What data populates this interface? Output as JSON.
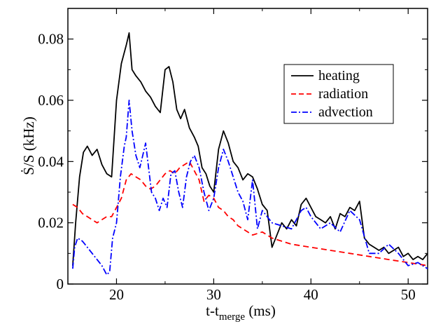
{
  "chart_data": {
    "type": "line",
    "title": "",
    "xlabel": {
      "main": "t-t",
      "sub": "merge",
      "unit": " (ms)"
    },
    "ylabel": {
      "dot_symbol": "Ṡ",
      "rest": "/S (kHz)"
    },
    "xlim": [
      15,
      52
    ],
    "ylim": [
      0,
      0.09
    ],
    "x_ticks": [
      20,
      30,
      40,
      50
    ],
    "x_tick_labels": [
      "20",
      "30",
      "40",
      "50"
    ],
    "y_ticks": [
      0,
      0.02,
      0.04,
      0.06,
      0.08
    ],
    "y_tick_labels": [
      "0",
      "0.02",
      "0.04",
      "0.06",
      "0.08"
    ],
    "grid": false,
    "legend_position": "upper-right",
    "series": [
      {
        "name": "heating",
        "color": "#000000",
        "style": "solid",
        "x": [
          15.5,
          15.8,
          16.2,
          16.6,
          17.0,
          17.5,
          18.0,
          18.5,
          19.0,
          19.5,
          20.0,
          20.5,
          21.0,
          21.3,
          21.6,
          22.0,
          22.5,
          23.0,
          23.5,
          24.0,
          24.5,
          25.0,
          25.4,
          25.8,
          26.2,
          26.6,
          27.0,
          27.5,
          28.0,
          28.4,
          28.8,
          29.2,
          29.6,
          30.0,
          30.5,
          31.0,
          31.5,
          32.0,
          32.5,
          33.0,
          33.5,
          34.0,
          34.5,
          35.0,
          35.5,
          36.0,
          36.5,
          37.0,
          37.5,
          38.0,
          38.5,
          39.0,
          39.5,
          40.0,
          40.5,
          41.0,
          41.5,
          42.0,
          42.5,
          43.0,
          43.5,
          44.0,
          44.5,
          45.0,
          45.5,
          46.0,
          46.5,
          47.0,
          47.5,
          48.0,
          48.5,
          49.0,
          49.5,
          50.0,
          50.5,
          51.0,
          51.5,
          52.0
        ],
        "y": [
          0.006,
          0.02,
          0.035,
          0.043,
          0.045,
          0.042,
          0.044,
          0.039,
          0.036,
          0.035,
          0.06,
          0.072,
          0.078,
          0.082,
          0.07,
          0.068,
          0.066,
          0.063,
          0.061,
          0.058,
          0.056,
          0.07,
          0.071,
          0.066,
          0.057,
          0.054,
          0.057,
          0.051,
          0.048,
          0.045,
          0.038,
          0.036,
          0.032,
          0.03,
          0.044,
          0.05,
          0.046,
          0.04,
          0.038,
          0.034,
          0.036,
          0.035,
          0.031,
          0.026,
          0.024,
          0.012,
          0.016,
          0.02,
          0.018,
          0.021,
          0.019,
          0.026,
          0.028,
          0.025,
          0.022,
          0.021,
          0.02,
          0.022,
          0.018,
          0.023,
          0.022,
          0.025,
          0.024,
          0.027,
          0.015,
          0.013,
          0.012,
          0.011,
          0.012,
          0.01,
          0.011,
          0.012,
          0.009,
          0.01,
          0.008,
          0.009,
          0.008,
          0.01
        ]
      },
      {
        "name": "radiation",
        "color": "#ff0000",
        "style": "dashed",
        "x": [
          15.5,
          16.0,
          16.5,
          17.0,
          17.5,
          18.0,
          18.5,
          19.0,
          19.5,
          20.0,
          20.5,
          21.0,
          21.5,
          22.0,
          22.5,
          23.0,
          23.5,
          24.0,
          24.5,
          25.0,
          25.5,
          26.0,
          26.5,
          27.0,
          27.5,
          28.0,
          28.5,
          29.0,
          29.5,
          30.0,
          30.5,
          31.0,
          31.5,
          32.0,
          32.5,
          33.0,
          34.0,
          35.0,
          36.0,
          37.0,
          38.0,
          40.0,
          42.0,
          44.0,
          46.0,
          48.0,
          50.0,
          52.0
        ],
        "y": [
          0.026,
          0.025,
          0.023,
          0.022,
          0.021,
          0.02,
          0.021,
          0.022,
          0.022,
          0.025,
          0.028,
          0.034,
          0.036,
          0.035,
          0.034,
          0.032,
          0.031,
          0.032,
          0.034,
          0.036,
          0.037,
          0.036,
          0.038,
          0.039,
          0.04,
          0.037,
          0.034,
          0.027,
          0.029,
          0.028,
          0.025,
          0.024,
          0.022,
          0.021,
          0.019,
          0.018,
          0.016,
          0.017,
          0.015,
          0.014,
          0.013,
          0.012,
          0.011,
          0.01,
          0.009,
          0.008,
          0.007,
          0.006
        ]
      },
      {
        "name": "advection",
        "color": "#0000ff",
        "style": "dashdot",
        "x": [
          15.5,
          15.7,
          16.0,
          16.5,
          17.0,
          17.5,
          18.0,
          18.5,
          19.0,
          19.3,
          19.6,
          20.0,
          20.4,
          20.8,
          21.0,
          21.3,
          21.6,
          22.0,
          22.4,
          22.7,
          23.0,
          23.3,
          23.6,
          24.0,
          24.4,
          24.8,
          25.2,
          25.6,
          26.0,
          26.4,
          26.8,
          27.2,
          27.6,
          28.0,
          28.5,
          29.0,
          29.5,
          30.0,
          30.5,
          31.0,
          31.5,
          32.0,
          32.5,
          33.0,
          33.5,
          34.0,
          34.5,
          35.0,
          35.5,
          36.0,
          37.0,
          38.0,
          39.0,
          39.5,
          40.0,
          41.0,
          42.0,
          43.0,
          44.0,
          45.0,
          46.0,
          47.0,
          48.0,
          49.0,
          50.0,
          51.0,
          52.0
        ],
        "y": [
          0.005,
          0.012,
          0.015,
          0.014,
          0.012,
          0.01,
          0.008,
          0.006,
          0.003,
          0.004,
          0.015,
          0.02,
          0.035,
          0.045,
          0.048,
          0.06,
          0.05,
          0.042,
          0.038,
          0.042,
          0.046,
          0.038,
          0.03,
          0.028,
          0.024,
          0.028,
          0.025,
          0.036,
          0.037,
          0.03,
          0.025,
          0.035,
          0.04,
          0.042,
          0.038,
          0.03,
          0.024,
          0.028,
          0.038,
          0.044,
          0.04,
          0.035,
          0.03,
          0.027,
          0.021,
          0.034,
          0.018,
          0.024,
          0.022,
          0.02,
          0.019,
          0.018,
          0.024,
          0.025,
          0.022,
          0.018,
          0.02,
          0.017,
          0.024,
          0.021,
          0.01,
          0.01,
          0.013,
          0.01,
          0.006,
          0.007,
          0.005
        ]
      }
    ]
  }
}
